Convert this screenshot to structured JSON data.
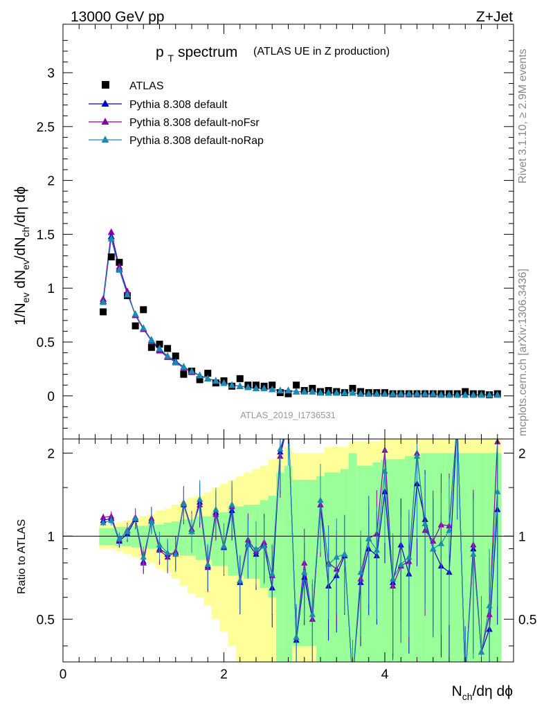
{
  "header": {
    "left": "13000 GeV pp",
    "right": "Z+Jet"
  },
  "side_labels": {
    "top": "Rivet 3.1.10, ≥ 2.9M events",
    "bottom": "mcplots.cern.ch [arXiv:1306.3436]"
  },
  "colors": {
    "atlas": "#000000",
    "default": "#0000cc",
    "noFsr": "#8800aa",
    "noRap": "#1a8cb0",
    "band_outer": "#ffff99",
    "band_inner": "#99ff99"
  },
  "chart_data": {
    "type": "scatter",
    "title": "p_T spectrum",
    "title_main": "p",
    "title_sub": "T",
    "title_rest": " spectrum",
    "title_note": "(ATLAS UE in Z production)",
    "analysis": "ATLAS_2019_I1736531",
    "xlabel": "N_ch/dη dϕ",
    "ylabel": "1/N_ev dN_ev/dN_ch/dη dϕ",
    "ratio_ylabel": "Ratio to ATLAS",
    "xlim": [
      0,
      5.6
    ],
    "ylim": [
      -0.4,
      3.45
    ],
    "ratio_ylim": [
      0.35,
      2.25
    ],
    "x_ticks": [
      "0",
      "2",
      "4"
    ],
    "y_ticks": [
      "0",
      "0.5",
      "1",
      "1.5",
      "2",
      "2.5",
      "3"
    ],
    "ratio_ticks": [
      "0.5",
      "1",
      "2"
    ],
    "legend": [
      "ATLAS",
      "Pythia 8.308 default",
      "Pythia 8.308 default-noFsr",
      "Pythia 8.308 default-noRap"
    ],
    "x": [
      0.5,
      0.6,
      0.7,
      0.8,
      0.9,
      1.0,
      1.1,
      1.2,
      1.3,
      1.4,
      1.5,
      1.6,
      1.7,
      1.8,
      1.9,
      2.0,
      2.1,
      2.2,
      2.3,
      2.4,
      2.5,
      2.6,
      2.7,
      2.8,
      2.9,
      3.0,
      3.1,
      3.2,
      3.3,
      3.4,
      3.5,
      3.6,
      3.7,
      3.8,
      3.9,
      4.0,
      4.1,
      4.2,
      4.3,
      4.4,
      4.5,
      4.6,
      4.7,
      4.8,
      4.9,
      5.0,
      5.1,
      5.2,
      5.3,
      5.4
    ],
    "atlas": [
      0.78,
      1.29,
      1.24,
      0.93,
      0.65,
      0.8,
      0.45,
      0.48,
      0.44,
      0.37,
      0.2,
      0.23,
      0.15,
      0.21,
      0.12,
      0.14,
      0.09,
      0.16,
      0.1,
      0.1,
      0.09,
      0.1,
      0.03,
      0.02,
      0.1,
      0.05,
      0.07,
      0.04,
      0.05,
      0.04,
      0.03,
      0.07,
      0.04,
      0.03,
      0.03,
      0.03,
      0.02,
      0.02,
      0.02,
      0.02,
      0.02,
      0.02,
      0.02,
      0.02,
      0.02,
      0.04,
      0.02,
      0.02,
      0.01,
      0.02
    ],
    "series": [
      {
        "name": "Pythia 8.308 default",
        "values": [
          0.88,
          1.48,
          1.18,
          0.95,
          0.75,
          0.62,
          0.52,
          0.43,
          0.37,
          0.32,
          0.27,
          0.23,
          0.19,
          0.16,
          0.14,
          0.12,
          0.1,
          0.09,
          0.08,
          0.07,
          0.07,
          0.06,
          0.05,
          0.05,
          0.04,
          0.04,
          0.04,
          0.03,
          0.03,
          0.03,
          0.03,
          0.03,
          0.02,
          0.02,
          0.02,
          0.02,
          0.02,
          0.02,
          0.02,
          0.02,
          0.02,
          0.02,
          0.01,
          0.01,
          0.01,
          0.01,
          0.01,
          0.01,
          0.01,
          0.01
        ],
        "ratio": [
          1.14,
          1.16,
          0.96,
          1.02,
          1.15,
          0.81,
          1.14,
          0.9,
          0.86,
          0.87,
          1.3,
          1.04,
          1.33,
          0.78,
          1.22,
          0.91,
          1.24,
          0.68,
          0.94,
          0.86,
          0.93,
          0.65,
          2.02,
          2.6,
          0.42,
          0.71,
          0.5,
          1.3,
          0.66,
          0.72,
          0.85,
          0.3,
          0.68,
          0.9,
          0.85,
          1.45,
          0.68,
          0.93,
          0.73,
          1.55,
          1.15,
          0.9,
          0.78,
          0.74,
          2.6,
          0.3,
          0.9,
          0.38,
          0.46,
          1.25
        ]
      },
      {
        "name": "Pythia 8.308 default-noFsr",
        "values": [
          0.9,
          1.52,
          1.2,
          0.97,
          0.75,
          0.62,
          0.51,
          0.42,
          0.36,
          0.31,
          0.26,
          0.22,
          0.19,
          0.16,
          0.14,
          0.12,
          0.1,
          0.09,
          0.08,
          0.07,
          0.07,
          0.06,
          0.05,
          0.05,
          0.04,
          0.04,
          0.04,
          0.03,
          0.03,
          0.03,
          0.03,
          0.03,
          0.02,
          0.02,
          0.02,
          0.02,
          0.02,
          0.02,
          0.02,
          0.02,
          0.02,
          0.02,
          0.01,
          0.01,
          0.01,
          0.01,
          0.01,
          0.01,
          0.01,
          0.01
        ],
        "ratio": [
          1.17,
          1.18,
          0.97,
          1.05,
          1.17,
          0.8,
          1.16,
          0.89,
          0.84,
          0.88,
          1.32,
          1.06,
          1.3,
          0.77,
          1.2,
          0.92,
          1.28,
          0.69,
          0.97,
          0.88,
          0.95,
          0.72,
          1.95,
          2.6,
          0.43,
          0.8,
          0.5,
          1.3,
          0.8,
          0.76,
          0.86,
          0.3,
          0.7,
          0.98,
          1.02,
          2.05,
          0.66,
          0.78,
          0.81,
          2.0,
          1.05,
          0.96,
          1.1,
          1.09,
          2.6,
          0.3,
          0.93,
          0.38,
          0.52,
          2.2
        ]
      },
      {
        "name": "Pythia 8.308 default-noRap",
        "values": [
          0.87,
          1.46,
          1.17,
          0.94,
          0.76,
          0.63,
          0.52,
          0.44,
          0.37,
          0.31,
          0.27,
          0.23,
          0.19,
          0.16,
          0.14,
          0.12,
          0.1,
          0.09,
          0.08,
          0.07,
          0.07,
          0.06,
          0.05,
          0.05,
          0.04,
          0.04,
          0.04,
          0.03,
          0.03,
          0.03,
          0.03,
          0.03,
          0.02,
          0.02,
          0.02,
          0.02,
          0.02,
          0.02,
          0.02,
          0.02,
          0.02,
          0.02,
          0.01,
          0.01,
          0.01,
          0.01,
          0.01,
          0.01,
          0.01,
          0.01
        ],
        "ratio": [
          1.12,
          1.14,
          0.98,
          1.04,
          1.16,
          0.84,
          1.13,
          0.93,
          0.87,
          0.86,
          1.31,
          1.04,
          1.36,
          0.79,
          1.25,
          0.92,
          1.3,
          0.69,
          0.93,
          0.9,
          0.92,
          0.73,
          2.07,
          2.6,
          0.43,
          0.74,
          0.52,
          1.35,
          0.79,
          0.84,
          0.86,
          0.3,
          0.74,
          0.98,
          0.89,
          1.72,
          0.7,
          0.79,
          0.84,
          1.95,
          1.11,
          0.9,
          0.94,
          1.05,
          2.6,
          0.3,
          0.86,
          0.38,
          0.56,
          1.45
        ]
      }
    ],
    "band_inner": [
      0.07,
      0.07,
      0.08,
      0.08,
      0.09,
      0.09,
      0.1,
      0.1,
      0.12,
      0.13,
      0.15,
      0.15,
      0.18,
      0.18,
      0.22,
      0.22,
      0.28,
      0.28,
      0.3,
      0.3,
      0.35,
      0.4,
      0.7,
      0.8,
      0.6,
      0.6,
      0.6,
      0.65,
      0.7,
      0.7,
      0.75,
      1.0,
      0.8,
      0.8,
      0.85,
      0.9,
      0.9,
      0.9,
      0.95,
      0.95,
      1.0,
      1.0,
      1.0,
      1.0,
      1.0,
      1.0,
      1.0,
      1.0,
      1.0,
      1.0
    ],
    "band_outer": [
      0.1,
      0.1,
      0.12,
      0.14,
      0.16,
      0.18,
      0.2,
      0.24,
      0.26,
      0.3,
      0.34,
      0.38,
      0.4,
      0.44,
      0.5,
      0.55,
      0.6,
      0.65,
      0.7,
      0.75,
      0.8,
      0.9,
      1.0,
      1.1,
      1.0,
      1.0,
      1.0,
      1.0,
      1.1,
      1.1,
      1.1,
      1.2,
      1.2,
      1.2,
      1.2,
      1.3,
      1.3,
      1.3,
      1.3,
      1.3,
      1.3,
      1.3,
      1.3,
      1.3,
      1.3,
      1.3,
      1.3,
      1.3,
      1.3,
      1.3
    ],
    "grid": false,
    "legend_position": "top-left"
  }
}
